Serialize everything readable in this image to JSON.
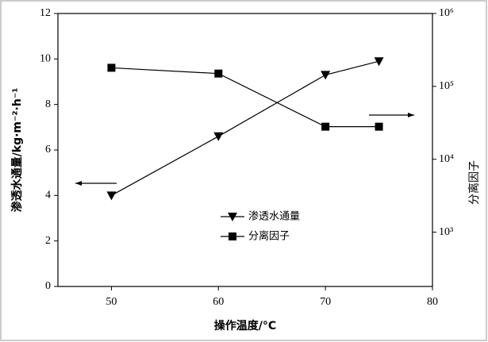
{
  "chart_data": {
    "type": "line",
    "x_label": "操作温度/°C",
    "y_label": "渗透水通量/kg·m⁻²·h⁻¹",
    "y2_label": "分离因子",
    "x": [
      50,
      60,
      70,
      75
    ],
    "series": [
      {
        "name": "渗透水通量",
        "color": "#000000",
        "marker": "triangle-down",
        "values": [
          4.0,
          6.6,
          9.3,
          9.9
        ]
      },
      {
        "name": "分离因子",
        "color": "#000000",
        "marker": "square",
        "axis": "y2",
        "values": [
          180000,
          150000,
          28000,
          28000
        ]
      }
    ],
    "xlim": [
      45,
      80
    ],
    "xticks": [
      50,
      60,
      70,
      80
    ],
    "ylim": [
      0,
      12
    ],
    "yticks": [
      0,
      2,
      4,
      6,
      8,
      10,
      12
    ],
    "y2lim": [
      180,
      1000000
    ],
    "y2log": true,
    "y2ticks": [
      {
        "value": 1000,
        "label": "10³"
      },
      {
        "value": 10000,
        "label": "10⁴"
      },
      {
        "value": 100000,
        "label": "10⁵"
      },
      {
        "value": 1000000,
        "label": "10⁶"
      }
    ]
  }
}
